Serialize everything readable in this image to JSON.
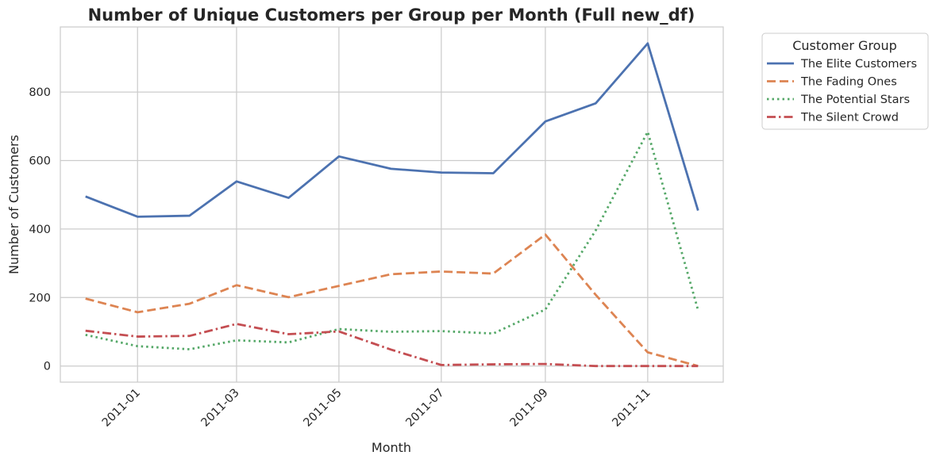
{
  "chart_data": {
    "type": "line",
    "title": "Number of Unique Customers per Group per Month (Full new_df)",
    "xlabel": "Month",
    "ylabel": "Number of Customers",
    "x": [
      "2010-12-01",
      "2011-01-01",
      "2011-02-01",
      "2011-03-01",
      "2011-04-01",
      "2011-05-01",
      "2011-06-01",
      "2011-07-01",
      "2011-08-01",
      "2011-09-01",
      "2011-10-01",
      "2011-11-01",
      "2011-12-01"
    ],
    "xticks": [
      "2011-01",
      "2011-03",
      "2011-05",
      "2011-07",
      "2011-09",
      "2011-11"
    ],
    "xlim": [
      "2010-11-16",
      "2011-12-16"
    ],
    "yticks": [
      0,
      200,
      400,
      600,
      800
    ],
    "ylim": [
      -47,
      990
    ],
    "grid": true,
    "legend": {
      "title": "Customer Group",
      "placement": "outside upper right"
    },
    "series": [
      {
        "name": "The Elite Customers",
        "color": "#4c72b0",
        "dash": "solid",
        "values": [
          495,
          436,
          439,
          539,
          491,
          612,
          576,
          565,
          563,
          714,
          767,
          942,
          454
        ]
      },
      {
        "name": "The Fading Ones",
        "color": "#dd8452",
        "dash": "dashed",
        "values": [
          197,
          157,
          182,
          236,
          201,
          234,
          268,
          276,
          270,
          384,
          208,
          40,
          0
        ]
      },
      {
        "name": "The Potential Stars",
        "color": "#55a868",
        "dash": "dotted",
        "values": [
          91,
          58,
          49,
          75,
          69,
          108,
          100,
          102,
          95,
          165,
          396,
          684,
          163
        ]
      },
      {
        "name": "The Silent Crowd",
        "color": "#c44e52",
        "dash": "dashdot",
        "values": [
          103,
          86,
          88,
          123,
          93,
          101,
          48,
          3,
          5,
          6,
          0,
          0,
          0
        ]
      }
    ]
  }
}
